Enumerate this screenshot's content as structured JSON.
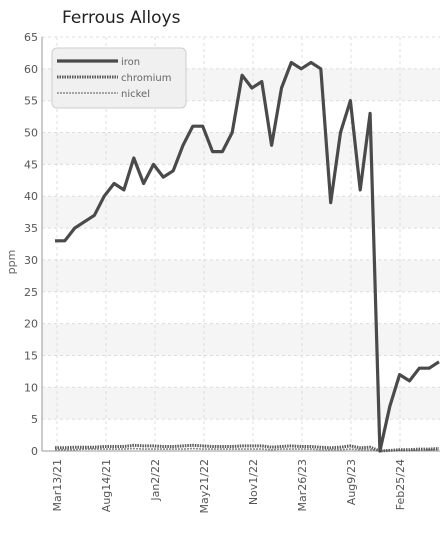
{
  "chart_data": {
    "type": "line",
    "title": "Ferrous Alloys",
    "xlabel": "",
    "ylabel": "ppm",
    "ylim": [
      0,
      65
    ],
    "y_ticks": [
      0,
      5,
      10,
      15,
      20,
      25,
      30,
      35,
      40,
      45,
      50,
      55,
      60,
      65
    ],
    "x_tick_labels": [
      "Mar13/21",
      "Aug14/21",
      "Jan2/22",
      "May21/22",
      "Nov1/22",
      "Mar26/23",
      "Aug9/23",
      "Feb25/24"
    ],
    "grid": true,
    "legend_position": "top-left",
    "series": [
      {
        "name": "iron",
        "color": "#4a4a4a",
        "values": [
          33,
          33,
          35,
          36,
          37,
          40,
          42,
          41,
          46,
          42,
          45,
          43,
          44,
          48,
          51,
          51,
          47,
          47,
          50,
          59,
          57,
          58,
          48,
          57,
          61,
          60,
          61,
          60,
          39,
          50,
          55,
          41,
          53,
          0,
          7,
          12,
          11,
          13,
          13,
          14
        ]
      },
      {
        "name": "chromium",
        "color": "#5a5a5a",
        "values": [
          0.5,
          0.5,
          0.6,
          0.6,
          0.6,
          0.7,
          0.7,
          0.7,
          0.9,
          0.8,
          0.8,
          0.7,
          0.7,
          0.8,
          0.9,
          0.8,
          0.7,
          0.7,
          0.7,
          0.8,
          0.8,
          0.8,
          0.6,
          0.7,
          0.8,
          0.7,
          0.7,
          0.6,
          0.5,
          0.6,
          0.8,
          0.5,
          0.6,
          0,
          0.1,
          0.2,
          0.2,
          0.3,
          0.3,
          0.4
        ]
      },
      {
        "name": "nickel",
        "color": "#8a8a8a",
        "values": [
          0.2,
          0.2,
          0.2,
          0.3,
          0.3,
          0.3,
          0.3,
          0.3,
          0.4,
          0.3,
          0.3,
          0.3,
          0.3,
          0.3,
          0.4,
          0.3,
          0.3,
          0.3,
          0.3,
          0.3,
          0.3,
          0.3,
          0.2,
          0.3,
          0.3,
          0.3,
          0.3,
          0.2,
          0.2,
          0.2,
          0.3,
          0.2,
          0.2,
          0,
          0.1,
          0.1,
          0.1,
          0.1,
          0.2,
          0.2
        ]
      }
    ]
  }
}
